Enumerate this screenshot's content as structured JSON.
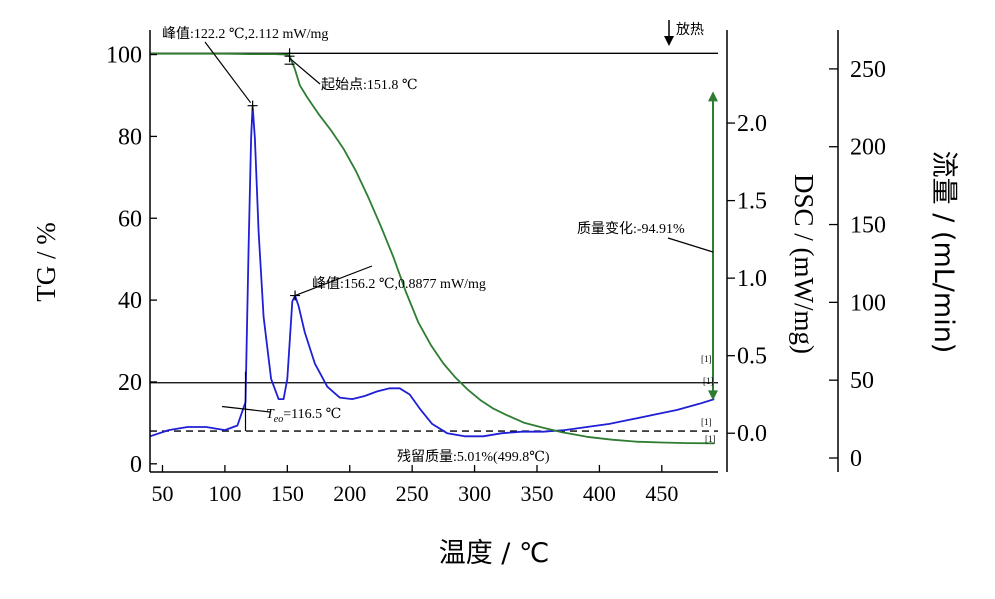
{
  "chart_data": {
    "type": "line",
    "title": "",
    "xlabel": "温度 / ℃",
    "xlim": [
      40,
      495
    ],
    "x_ticks": [
      50,
      100,
      150,
      200,
      250,
      300,
      350,
      400,
      450
    ],
    "axes": {
      "tg": {
        "label": "TG / %",
        "ylim": [
          -2,
          106
        ],
        "ticks": [
          0,
          20,
          40,
          60,
          80,
          100
        ]
      },
      "dsc": {
        "label": "DSC / (mW/mg)",
        "ylim": [
          -0.25,
          2.6
        ],
        "ticks": [
          0.0,
          0.5,
          1.0,
          1.5,
          2.0
        ],
        "tick_labels": [
          "0.0",
          "0.5",
          "1.0",
          "1.5",
          "2.0"
        ]
      },
      "flow": {
        "label": "流量 / (mL/min)",
        "ylim": [
          -9,
          275
        ],
        "ticks": [
          0,
          50,
          100,
          150,
          200,
          250
        ]
      }
    },
    "series": [
      {
        "axis": "dsc",
        "color": "#1f1fd6",
        "x": [
          40,
          55,
          70,
          85,
          100,
          110,
          116.5,
          119,
          121,
          122.2,
          124,
          127,
          131,
          137,
          143,
          147,
          150,
          152,
          154,
          156.2,
          159,
          164,
          172,
          182,
          192,
          202,
          212,
          222,
          232,
          240,
          248,
          256,
          266,
          278,
          292,
          307,
          322,
          338,
          355,
          372,
          390,
          408,
          426,
          444,
          462,
          480,
          492
        ],
        "y": [
          -0.02,
          0.02,
          0.04,
          0.04,
          0.02,
          0.05,
          0.2,
          1.2,
          1.9,
          2.112,
          1.9,
          1.3,
          0.75,
          0.35,
          0.22,
          0.22,
          0.35,
          0.6,
          0.85,
          0.8877,
          0.82,
          0.65,
          0.45,
          0.3,
          0.23,
          0.22,
          0.24,
          0.27,
          0.29,
          0.29,
          0.25,
          0.16,
          0.06,
          0.0,
          -0.02,
          -0.02,
          0.0,
          0.01,
          0.01,
          0.02,
          0.04,
          0.06,
          0.09,
          0.12,
          0.15,
          0.19,
          0.22
        ]
      },
      {
        "axis": "tg",
        "color": "#2e7d32",
        "x": [
          40,
          60,
          80,
          100,
          120,
          140,
          150,
          152,
          156,
          160,
          166,
          175,
          185,
          195,
          205,
          215,
          225,
          235,
          245,
          255,
          265,
          275,
          285,
          295,
          305,
          315,
          325,
          340,
          355,
          370,
          390,
          410,
          430,
          450,
          470,
          492
        ],
        "y": [
          100.2,
          100.2,
          100.2,
          100.2,
          100.1,
          100.1,
          100.0,
          99.5,
          96.5,
          92.5,
          89.5,
          85.5,
          81.5,
          77.0,
          71.5,
          65.0,
          58.0,
          50.5,
          42.0,
          34.5,
          29.0,
          24.5,
          21.0,
          18.0,
          15.5,
          13.5,
          12.0,
          10.0,
          8.8,
          7.7,
          6.6,
          5.9,
          5.4,
          5.2,
          5.05,
          5.01
        ]
      }
    ],
    "reference_lines": [
      {
        "axis": "tg",
        "y": 100.3,
        "style": "solid"
      },
      {
        "axis": "tg",
        "y": 19.8,
        "style": "solid"
      },
      {
        "axis": "tg",
        "y": 8.0,
        "style": "dashed"
      }
    ],
    "annotations": {
      "peak1": "峰值:122.2 ℃,2.112 mW/mg",
      "onset_start": "起始点:151.8 ℃",
      "peak2": "峰值:156.2 ℃,0.8877 mW/mg",
      "mass_change": "质量变化:-94.91%",
      "residue": "残留质量:5.01%(499.8℃)",
      "teo_symbol": "T",
      "teo_sub": "eo",
      "teo_value": "=116.5 ℃",
      "exo": "放热",
      "marker": "[1]"
    }
  }
}
